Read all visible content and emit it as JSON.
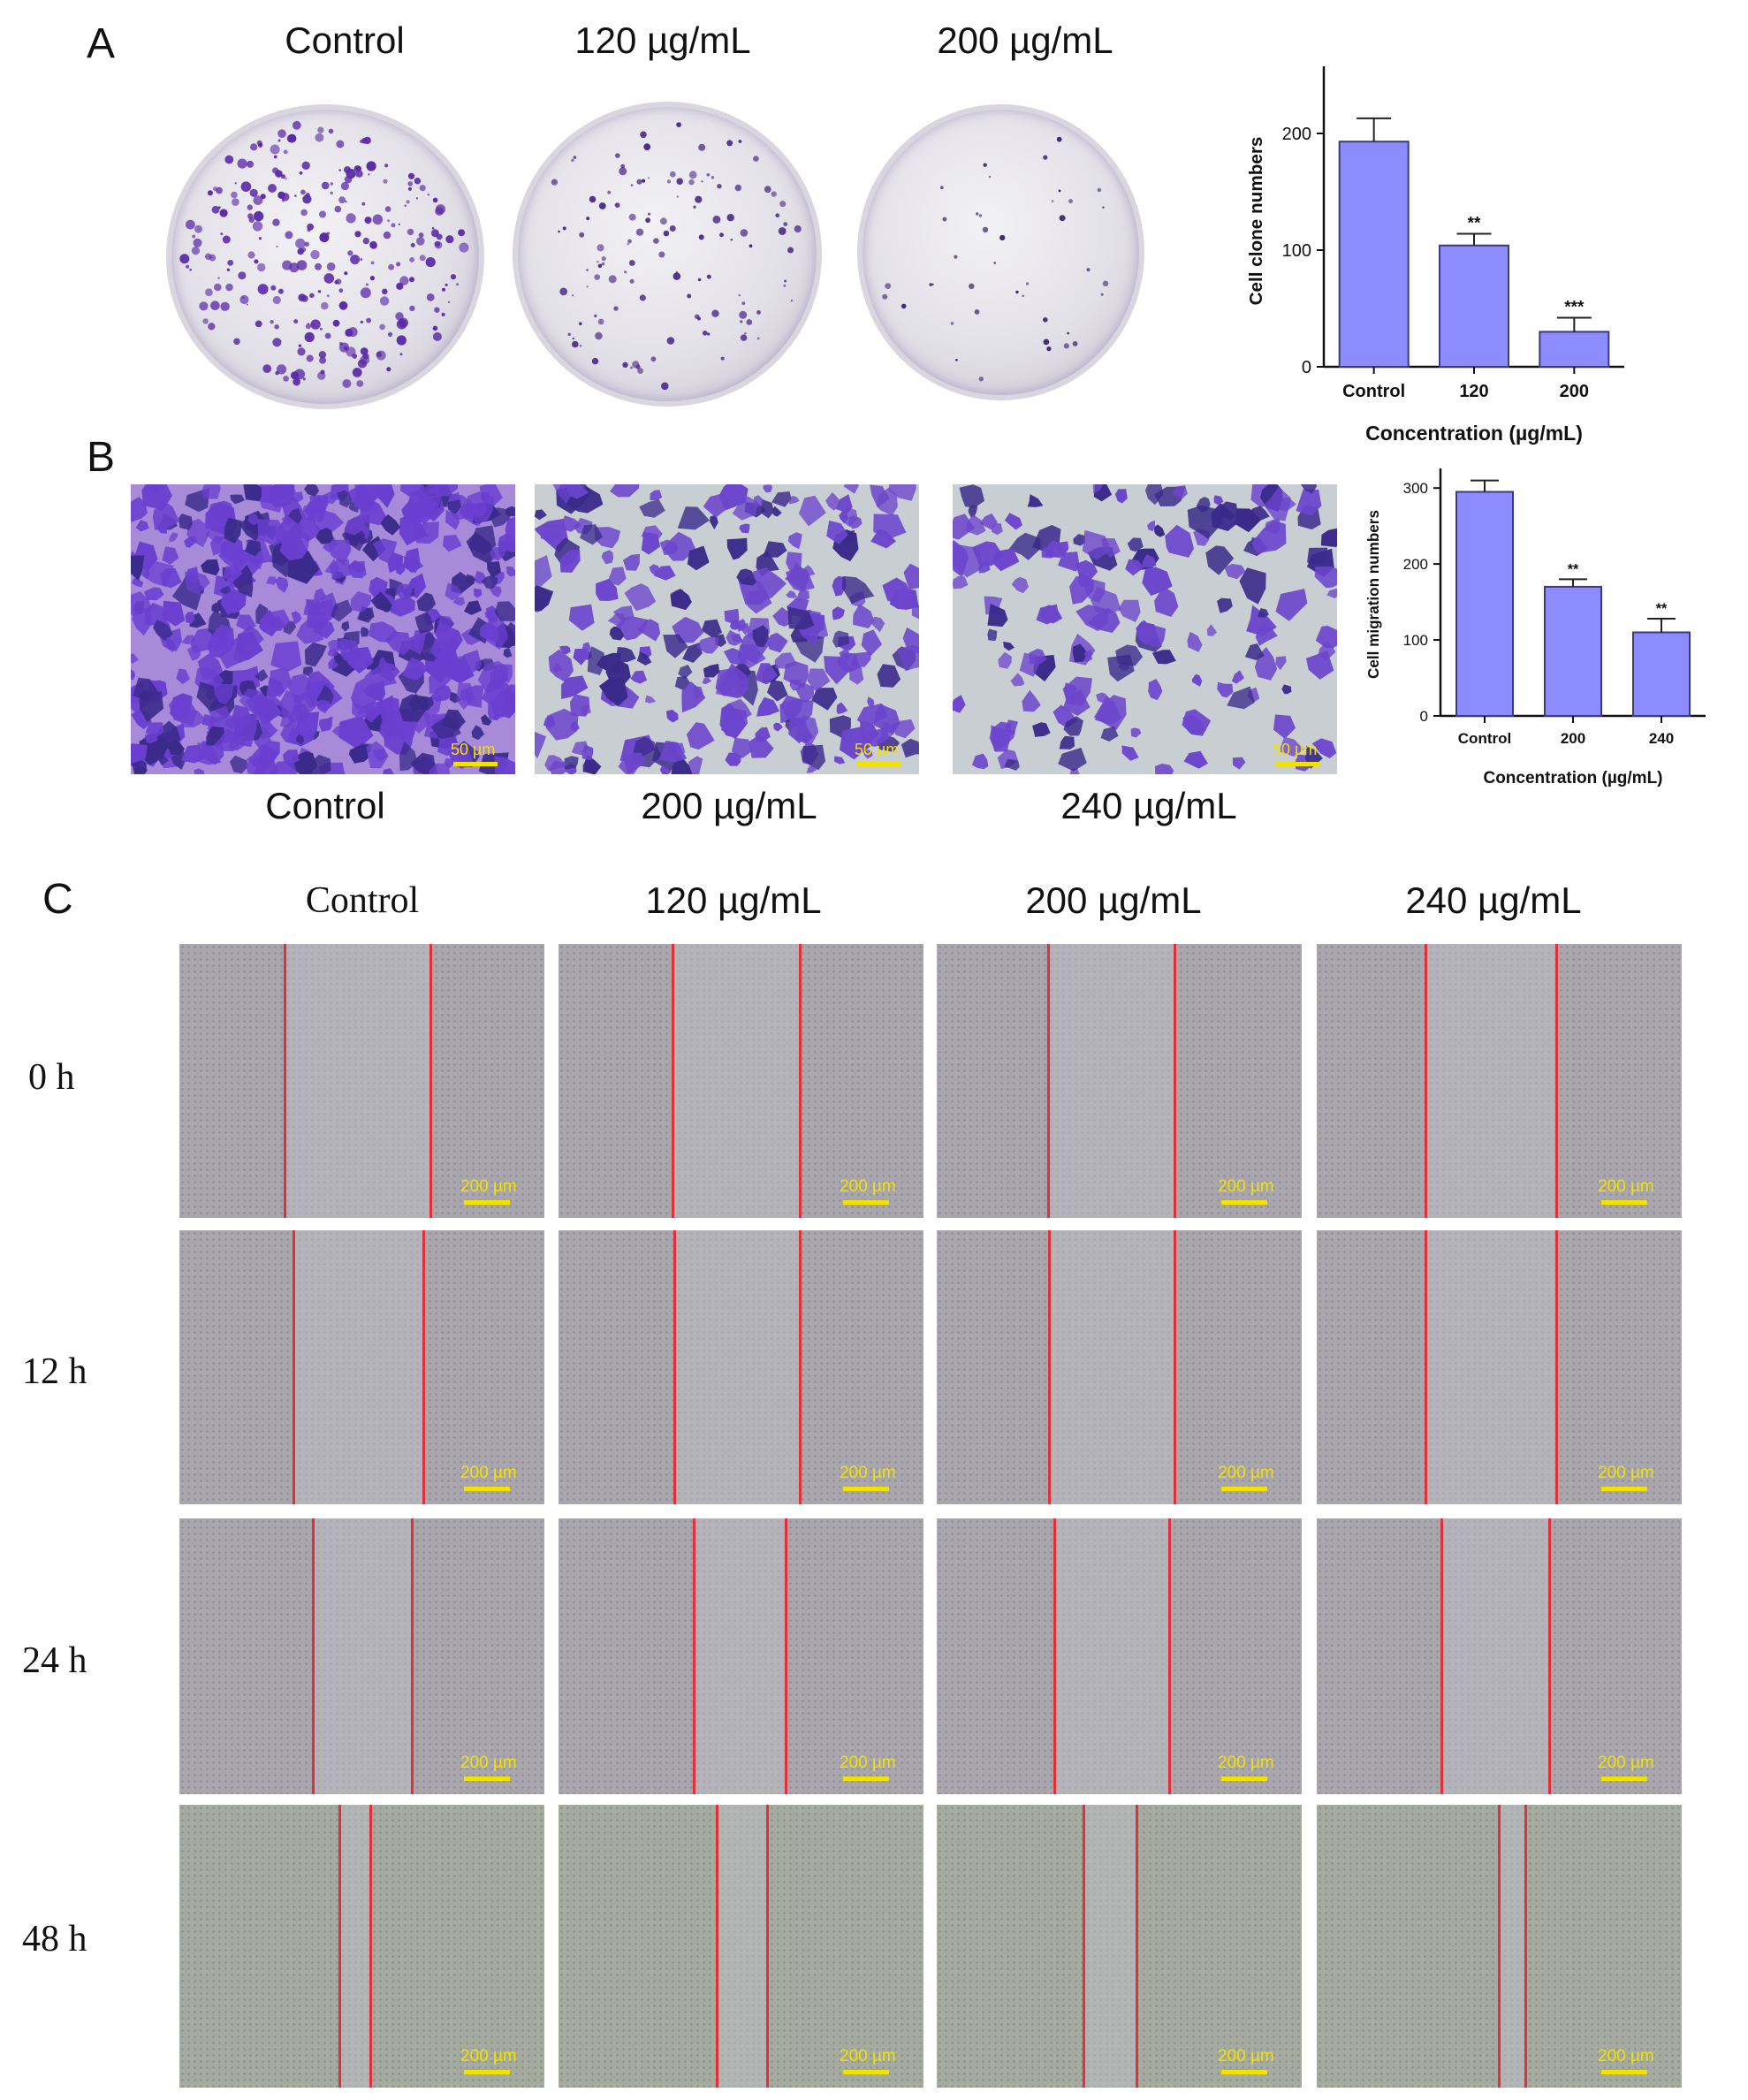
{
  "panelA": {
    "letter": "A",
    "dish_labels": [
      "Control",
      "120 µg/mL",
      "200 µg/mL"
    ]
  },
  "panelB": {
    "letter": "B",
    "image_labels": [
      "Control",
      "200 µg/mL",
      "240 µg/mL"
    ],
    "scale_label": "50 µm"
  },
  "panelC": {
    "letter": "C",
    "column_labels": [
      "Control",
      "120 µg/mL",
      "200 µg/mL",
      "240 µg/mL"
    ],
    "row_labels": [
      "0 h",
      "12 h",
      "24 h",
      "48 h"
    ],
    "scale_label": "200 µm"
  },
  "colors": {
    "bar_fill": "#8c8cff",
    "bar_stroke": "#3a3a80",
    "wound_line": "#e0303a",
    "scale_bar": "#f2e200"
  },
  "chart_data": [
    {
      "type": "bar",
      "categories": [
        "Control",
        "120",
        "200"
      ],
      "values": [
        193,
        104,
        30
      ],
      "errors": [
        20,
        10,
        12
      ],
      "significance": [
        "",
        "**",
        "***"
      ],
      "xlabel": "Concentration (µg/mL)",
      "ylabel": "Cell clone numbers",
      "yticks": [
        0,
        100,
        200
      ],
      "ylim": [
        0,
        250
      ]
    },
    {
      "type": "bar",
      "categories": [
        "Control",
        "200",
        "240"
      ],
      "values": [
        295,
        170,
        110
      ],
      "errors": [
        15,
        10,
        18
      ],
      "significance": [
        "",
        "**",
        "**"
      ],
      "xlabel": "Concentration (µg/mL)",
      "ylabel": "Cell migration numbers",
      "yticks": [
        0,
        100,
        200,
        300
      ],
      "ylim": [
        0,
        320
      ]
    }
  ]
}
